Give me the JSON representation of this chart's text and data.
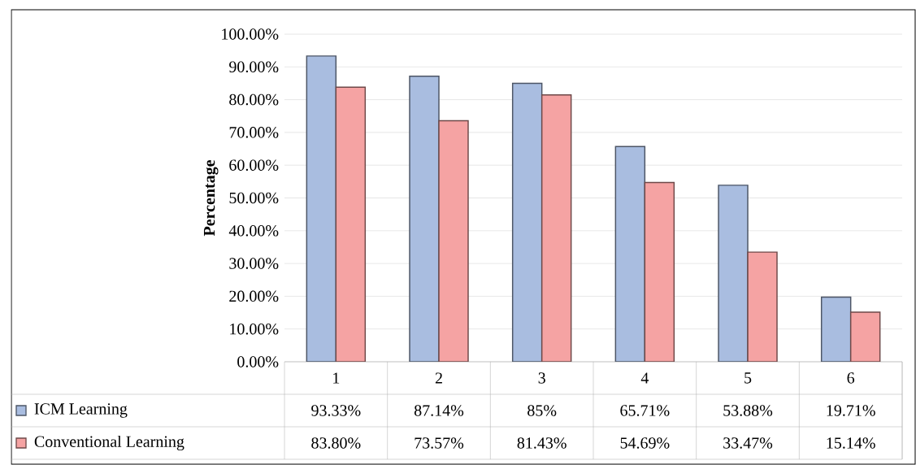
{
  "chart_data": {
    "type": "bar",
    "ylabel": "Percentage",
    "categories": [
      "1",
      "2",
      "3",
      "4",
      "5",
      "6"
    ],
    "series": [
      {
        "name": "ICM Learning",
        "color": "#a9bde0",
        "values": [
          93.33,
          87.14,
          85,
          65.71,
          53.88,
          19.71
        ],
        "value_labels": [
          "93.33%",
          "87.14%",
          "85%",
          "65.71%",
          "53.88%",
          "19.71%"
        ]
      },
      {
        "name": "Conventional Learning",
        "color": "#f5a3a3",
        "values": [
          83.8,
          73.57,
          81.43,
          54.69,
          33.47,
          15.14
        ],
        "value_labels": [
          "83.80%",
          "73.57%",
          "81.43%",
          "54.69%",
          "33.47%",
          "15.14%"
        ]
      }
    ],
    "ylim": [
      0,
      100
    ],
    "yticks": [
      {
        "value": 0,
        "label": "0.00%"
      },
      {
        "value": 10,
        "label": "10.00%"
      },
      {
        "value": 20,
        "label": "20.00%"
      },
      {
        "value": 30,
        "label": "30.00%"
      },
      {
        "value": 40,
        "label": "40.00%"
      },
      {
        "value": 50,
        "label": "50.00%"
      },
      {
        "value": 60,
        "label": "60.00%"
      },
      {
        "value": 70,
        "label": "70.00%"
      },
      {
        "value": 80,
        "label": "80.00%"
      },
      {
        "value": 90,
        "label": "90.00%"
      },
      {
        "value": 100,
        "label": "100.00%"
      }
    ],
    "grid": "y",
    "legend": "bottom"
  }
}
